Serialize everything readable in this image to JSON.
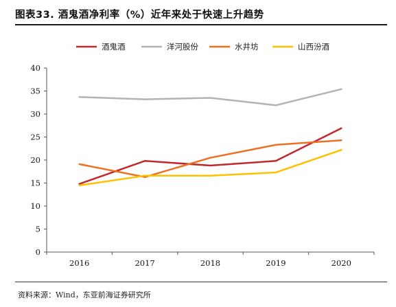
{
  "header": {
    "title": "图表33. 酒鬼酒净利率（%）近年来处于快速上升趋势"
  },
  "footer": {
    "source": "资料来源：Wind，东亚前海证券研究所"
  },
  "chart_data": {
    "type": "line",
    "title": "",
    "xlabel": "",
    "ylabel": "",
    "x": [
      "2016",
      "2017",
      "2018",
      "2019",
      "2020"
    ],
    "ylim": [
      0,
      40
    ],
    "yticks": [
      0,
      5,
      10,
      15,
      20,
      25,
      30,
      35,
      40
    ],
    "grid": false,
    "legend_position": "top",
    "series": [
      {
        "name": "酒鬼酒",
        "color": "#c0282d",
        "values": [
          14.8,
          19.8,
          18.8,
          19.8,
          26.9
        ]
      },
      {
        "name": "洋河股份",
        "color": "#b3b3b3",
        "values": [
          33.7,
          33.2,
          33.5,
          31.9,
          35.4
        ]
      },
      {
        "name": "水井坊",
        "color": "#ed7022",
        "values": [
          19.1,
          16.3,
          20.5,
          23.3,
          24.3
        ]
      },
      {
        "name": "山西汾酒",
        "color": "#ffc000",
        "values": [
          14.5,
          16.6,
          16.6,
          17.3,
          22.2
        ]
      }
    ]
  }
}
